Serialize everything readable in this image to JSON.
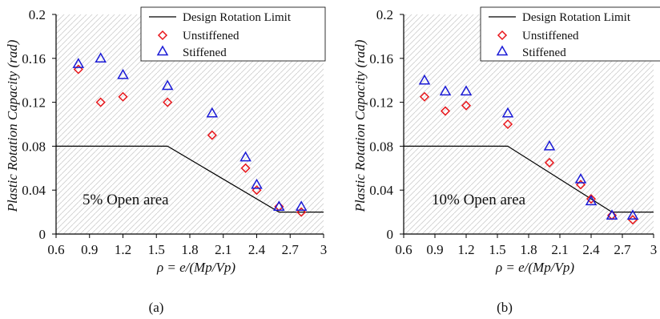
{
  "chart_data": [
    {
      "type": "scatter",
      "caption": "(a)",
      "annotation": "5% Open area",
      "xlabel": "ρ = e/(Mp/Vp)",
      "ylabel": "Plastic Rotation Capacity (rad)",
      "xlim": [
        0.6,
        3.0
      ],
      "ylim": [
        0,
        0.2
      ],
      "xticks": [
        "0.6",
        "0.9",
        "1.2",
        "1.5",
        "1.8",
        "2.1",
        "2.4",
        "2.7",
        "3"
      ],
      "yticks": [
        "0",
        "0.04",
        "0.08",
        "0.12",
        "0.16",
        "0.2"
      ],
      "legend_position": "top-right",
      "legend": [
        "Design Rotation Limit",
        "Unstiffened",
        "Stiffened"
      ],
      "series": [
        {
          "name": "Design Rotation Limit",
          "kind": "line",
          "color": "#000000",
          "x": [
            0.6,
            1.6,
            2.6,
            3.0
          ],
          "y": [
            0.08,
            0.08,
            0.02,
            0.02
          ]
        },
        {
          "name": "Unstiffened",
          "kind": "diamond",
          "color": "#e8161b",
          "x": [
            0.8,
            1.0,
            1.2,
            1.6,
            2.0,
            2.3,
            2.4,
            2.6,
            2.8
          ],
          "y": [
            0.15,
            0.12,
            0.125,
            0.12,
            0.09,
            0.06,
            0.04,
            0.025,
            0.02
          ]
        },
        {
          "name": "Stiffened",
          "kind": "triangle",
          "color": "#1a1ad6",
          "x": [
            0.8,
            1.0,
            1.2,
            1.6,
            2.0,
            2.3,
            2.4,
            2.6,
            2.8
          ],
          "y": [
            0.155,
            0.16,
            0.145,
            0.135,
            0.11,
            0.07,
            0.045,
            0.025,
            0.025
          ]
        }
      ]
    },
    {
      "type": "scatter",
      "caption": "(b)",
      "annotation": "10% Open area",
      "xlabel": "ρ = e/(Mp/Vp)",
      "ylabel": "Plastic Rotation Capacity (rad)",
      "xlim": [
        0.6,
        3.0
      ],
      "ylim": [
        0,
        0.2
      ],
      "xticks": [
        "0.6",
        "0.9",
        "1.2",
        "1.5",
        "1.8",
        "2.1",
        "2.4",
        "2.7",
        "3"
      ],
      "yticks": [
        "0",
        "0.04",
        "0.08",
        "0.12",
        "0.16",
        "0.2"
      ],
      "legend_position": "top-right",
      "legend": [
        "Design Rotation Limit",
        "Unstiffened",
        "Stiffened"
      ],
      "series": [
        {
          "name": "Design Rotation Limit",
          "kind": "line",
          "color": "#000000",
          "x": [
            0.6,
            1.6,
            2.6,
            3.0
          ],
          "y": [
            0.08,
            0.08,
            0.02,
            0.02
          ]
        },
        {
          "name": "Unstiffened",
          "kind": "diamond",
          "color": "#e8161b",
          "x": [
            0.8,
            1.0,
            1.2,
            1.6,
            2.0,
            2.3,
            2.4,
            2.6,
            2.8
          ],
          "y": [
            0.125,
            0.112,
            0.117,
            0.1,
            0.065,
            0.045,
            0.032,
            0.017,
            0.013
          ]
        },
        {
          "name": "Stiffened",
          "kind": "triangle",
          "color": "#1a1ad6",
          "x": [
            0.8,
            1.0,
            1.2,
            1.6,
            2.0,
            2.3,
            2.4,
            2.6,
            2.8
          ],
          "y": [
            0.14,
            0.13,
            0.13,
            0.11,
            0.08,
            0.05,
            0.03,
            0.017,
            0.017
          ]
        }
      ]
    }
  ]
}
